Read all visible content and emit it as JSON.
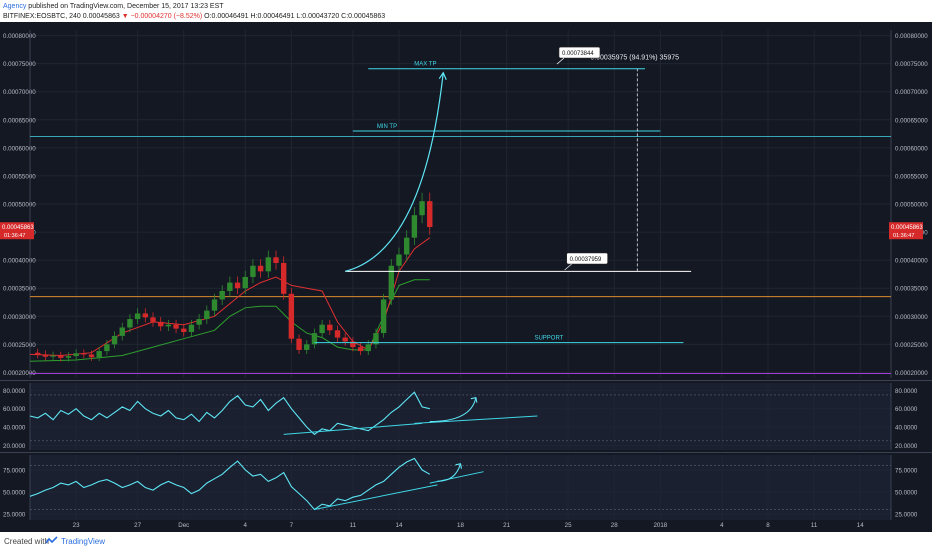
{
  "header": {
    "author": "Agency",
    "published": " published on TradingView.com, December 15, 2017 13:23 EST",
    "symbol": "BITFINEX:EOSBTC, 240",
    "price": "0.00045863",
    "change": "▼ −0.00004270 (−8.52%)",
    "ohlc": "O:0.00046491 H:0.00046491 L:0.00043720 C:0.00045863"
  },
  "footer": {
    "created": "Created with",
    "brand": "TradingView"
  },
  "colors": {
    "background": "#141823",
    "grid": "#1f2533",
    "candle_up": "#2f8a2f",
    "candle_down": "#d62a2a",
    "annotation": "#5ee6f5",
    "support": "#3fd7e6",
    "entry_line": "#ffffff",
    "orange_line": "#d98a2c",
    "purple_line": "#9f3dd6",
    "conversion_line": "#e03030",
    "base_line": "#2ea02e",
    "price_badge": "#d62a2a"
  },
  "chart_data": [
    {
      "type": "line",
      "panel": "price",
      "y_axis_labels": [
        "0.00080000",
        "0.00075000",
        "0.00070000",
        "0.00065000",
        "0.00060000",
        "0.00055000",
        "0.00050000",
        "0.00045000",
        "0.00040000",
        "0.00035000",
        "0.00030000",
        "0.00025000",
        "0.00020000"
      ],
      "ylim": [
        0.00019,
        0.00081
      ],
      "x_tick_labels": [
        "23",
        "27",
        "Dec",
        "4",
        "7",
        "11",
        "14",
        "18",
        "21",
        "25",
        "28",
        "2018",
        "4",
        "8",
        "11",
        "14"
      ],
      "x_ticks_x": [
        3,
        7,
        10,
        14,
        17,
        21,
        24,
        28,
        31,
        35,
        38,
        41,
        45,
        48,
        51,
        54
      ],
      "xlim": [
        0,
        56
      ],
      "current_price": "0.00045863",
      "countdown": "01:36:47",
      "price_series": {
        "x": [
          0,
          0.5,
          1,
          1.5,
          2,
          2.5,
          3,
          3.5,
          4,
          4.5,
          5,
          5.5,
          6,
          6.5,
          7,
          7.5,
          8,
          8.5,
          9,
          9.5,
          10,
          10.5,
          11,
          11.5,
          12,
          12.5,
          13,
          13.5,
          14,
          14.5,
          15,
          15.5,
          16,
          16.5,
          17,
          17.5,
          18,
          18.5,
          19,
          19.5,
          20,
          20.5,
          21,
          21.5,
          22,
          22.5,
          23,
          23.5,
          24,
          24.5,
          25,
          25.5,
          26
        ],
        "y": [
          0.000235,
          0.000232,
          0.000228,
          0.00023,
          0.000226,
          0.000229,
          0.000234,
          0.000232,
          0.000227,
          0.000238,
          0.00025,
          0.000265,
          0.00028,
          0.000295,
          0.000305,
          0.000298,
          0.00029,
          0.000282,
          0.000285,
          0.000278,
          0.000272,
          0.000285,
          0.000295,
          0.00031,
          0.00033,
          0.000345,
          0.00036,
          0.00035,
          0.00037,
          0.00039,
          0.00038,
          0.000405,
          0.000395,
          0.00034,
          0.00026,
          0.00024,
          0.00025,
          0.00027,
          0.000285,
          0.000275,
          0.000262,
          0.000255,
          0.000245,
          0.000238,
          0.00025,
          0.00027,
          0.00033,
          0.00039,
          0.00041,
          0.00044,
          0.00048,
          0.000505,
          0.000459
        ]
      },
      "conversion_line": {
        "x": [
          0,
          2,
          4,
          6,
          8,
          10,
          12,
          14,
          15,
          16,
          17,
          18,
          19,
          20,
          21,
          22,
          23,
          24,
          25,
          26
        ],
        "y": [
          0.000232,
          0.00023,
          0.000235,
          0.00027,
          0.00029,
          0.000285,
          0.0003,
          0.000345,
          0.00036,
          0.00037,
          0.000355,
          0.00035,
          0.000345,
          0.00029,
          0.000255,
          0.00024,
          0.00029,
          0.00038,
          0.00042,
          0.00044
        ]
      },
      "base_line": {
        "x": [
          0,
          3,
          6,
          8,
          10,
          12,
          13,
          14,
          15,
          16,
          17,
          18,
          19,
          20,
          21,
          22,
          23,
          24,
          25,
          26
        ],
        "y": [
          0.00022,
          0.000222,
          0.00023,
          0.000245,
          0.00026,
          0.000275,
          0.0003,
          0.000315,
          0.000318,
          0.000318,
          0.00029,
          0.00027,
          0.000262,
          0.000245,
          0.00024,
          0.00024,
          0.0003,
          0.000355,
          0.000365,
          0.000365
        ]
      },
      "horizontal_levels": [
        {
          "name": "orange",
          "y": 0.000335
        },
        {
          "name": "purple",
          "y": 0.000198
        },
        {
          "name": "min_tp_long",
          "y": 0.00062
        }
      ],
      "segments": [
        {
          "label": "MAX TP",
          "y": 0.000741,
          "x0": 22.0,
          "x1": 40.0
        },
        {
          "label": "MIN TP",
          "y": 0.00063,
          "x0": 21.0,
          "x1": 41.0
        },
        {
          "label": "SUPPORT",
          "y": 0.000253,
          "x0": 18.5,
          "x1": 42.5
        },
        {
          "label": "",
          "y": 0.00038,
          "x0": 20.5,
          "x1": 43.0
        }
      ],
      "callouts": [
        {
          "text": "0.00073844",
          "x": 34.6,
          "y": 0.000769
        },
        {
          "text": "0.00037959",
          "x": 35.1,
          "y": 0.000402
        }
      ],
      "measure_label": "0.00035975 (94.91%) 35975",
      "measure": {
        "x": 39.5,
        "y0": 0.00038,
        "y1": 0.000741
      }
    },
    {
      "type": "line",
      "panel": "rsi_1",
      "y_axis_labels": [
        "80.0000",
        "60.0000",
        "40.0000",
        "20.0000"
      ],
      "ylim": [
        15,
        88
      ],
      "levels": [
        75,
        25
      ],
      "series_x": [
        0,
        0.5,
        1,
        1.5,
        2,
        2.5,
        3,
        3.5,
        4,
        4.5,
        5,
        5.5,
        6,
        6.5,
        7,
        7.5,
        8,
        8.5,
        9,
        9.5,
        10,
        10.5,
        11,
        11.5,
        12,
        12.5,
        13,
        13.5,
        14,
        14.5,
        15,
        15.5,
        16,
        16.5,
        17,
        17.5,
        18,
        18.5,
        19,
        19.5,
        20,
        20.5,
        21,
        21.5,
        22,
        22.5,
        23,
        23.5,
        24,
        24.5,
        25,
        25.5,
        26
      ],
      "series_y": [
        52,
        50,
        55,
        48,
        58,
        54,
        60,
        52,
        48,
        55,
        50,
        56,
        62,
        58,
        68,
        60,
        55,
        52,
        58,
        50,
        48,
        54,
        46,
        56,
        50,
        58,
        68,
        74,
        64,
        62,
        70,
        58,
        66,
        72,
        60,
        50,
        40,
        32,
        38,
        36,
        44,
        42,
        40,
        38,
        36,
        42,
        48,
        56,
        62,
        70,
        78,
        62,
        60
      ],
      "divergence": {
        "x0": 16.5,
        "y0": 32,
        "x1": 25.5,
        "y1": 44
      },
      "trend_line": {
        "x0": 25.0,
        "y0": 44,
        "x1": 33.0,
        "y1": 52
      },
      "arrow": {
        "x0": 26.0,
        "y0": 46,
        "x1": 29.0,
        "y1": 72
      }
    },
    {
      "type": "line",
      "panel": "rsi_2",
      "y_axis_labels": [
        "75.0000",
        "50.0000",
        "25.0000"
      ],
      "ylim": [
        18,
        92
      ],
      "levels": [
        80,
        30
      ],
      "series_x": [
        0,
        0.5,
        1,
        1.5,
        2,
        2.5,
        3,
        3.5,
        4,
        4.5,
        5,
        5.5,
        6,
        6.5,
        7,
        7.5,
        8,
        8.5,
        9,
        9.5,
        10,
        10.5,
        11,
        11.5,
        12,
        12.5,
        13,
        13.5,
        14,
        14.5,
        15,
        15.5,
        16,
        16.5,
        17,
        17.5,
        18,
        18.5,
        19,
        19.5,
        20,
        20.5,
        21,
        21.5,
        22,
        22.5,
        23,
        23.5,
        24,
        24.5,
        25,
        25.5,
        26
      ],
      "series_y": [
        45,
        48,
        52,
        55,
        60,
        58,
        62,
        55,
        58,
        62,
        64,
        60,
        55,
        58,
        62,
        55,
        52,
        58,
        62,
        58,
        55,
        48,
        52,
        60,
        65,
        70,
        78,
        85,
        75,
        68,
        70,
        62,
        66,
        72,
        56,
        48,
        40,
        30,
        36,
        34,
        42,
        40,
        44,
        46,
        52,
        58,
        62,
        70,
        78,
        84,
        88,
        75,
        70
      ],
      "divergence": {
        "x0": 18.5,
        "y0": 30,
        "x1": 26.5,
        "y1": 58
      },
      "trend_line": {
        "x0": 26.0,
        "y0": 60,
        "x1": 29.5,
        "y1": 73
      },
      "arrow": {
        "x0": 26.5,
        "y0": 62,
        "x1": 28.0,
        "y1": 82
      }
    }
  ]
}
